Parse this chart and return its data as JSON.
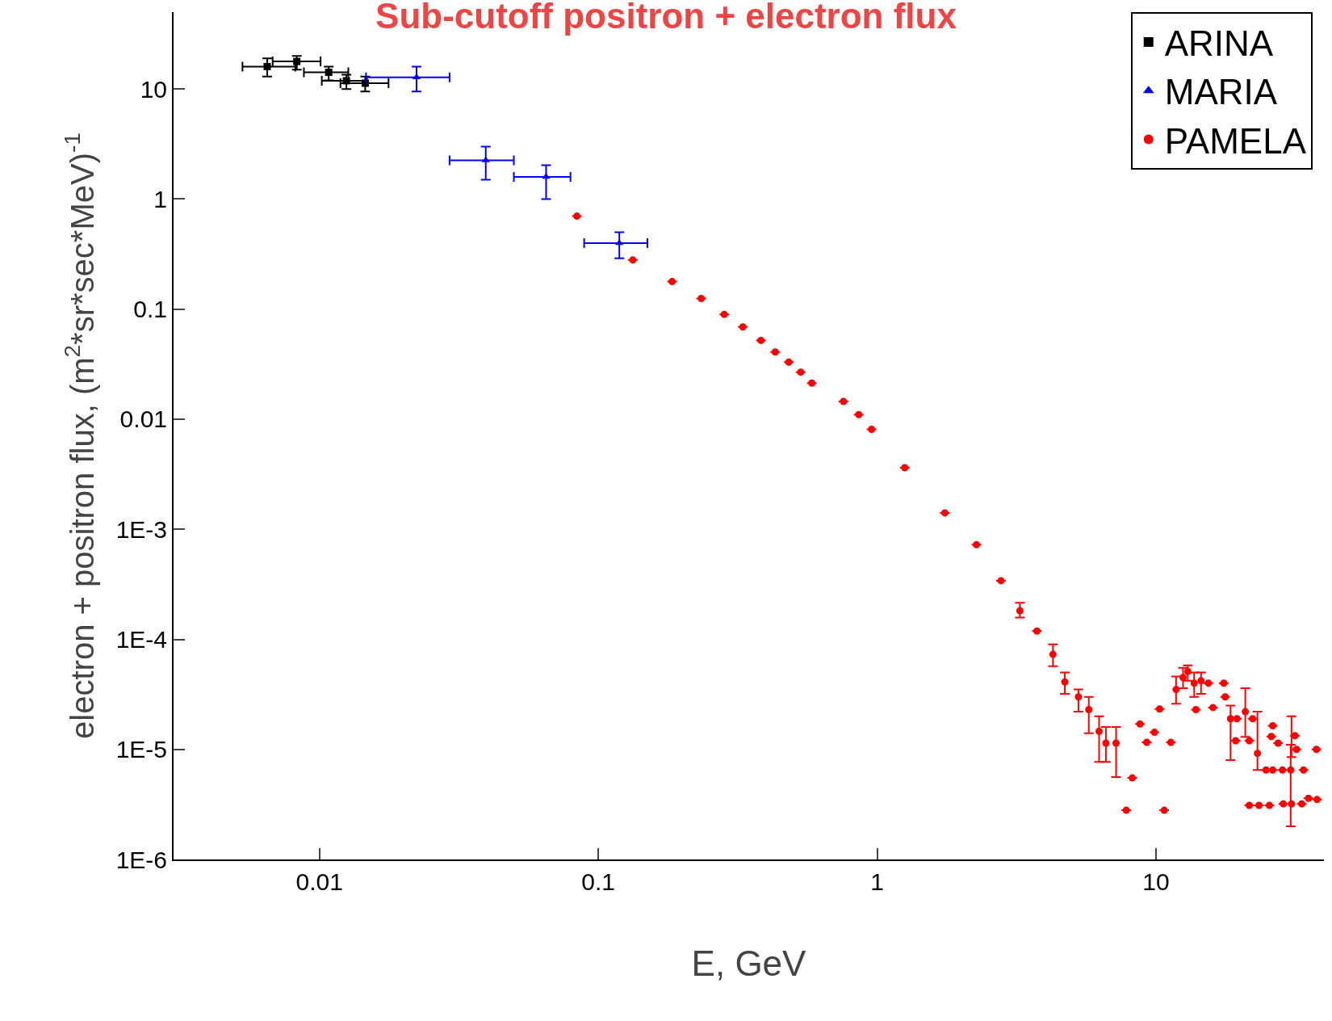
{
  "chart_data": {
    "type": "scatter",
    "title": "Sub-cutoff positron + electron flux",
    "xlabel": "E, GeV",
    "ylabel": "electron + positron flux, (m$^{2}$*sr*sec*MeV)$^{-1}$",
    "log": "xy",
    "grid": false,
    "legend": "top right",
    "xlim": [
      0.003,
      40
    ],
    "ylim": [
      1e-06,
      50
    ],
    "xticks": [
      0.01,
      0.1,
      1,
      10
    ],
    "yticks": [
      {
        "value": 10,
        "label": "10"
      },
      {
        "value": 1,
        "label": "1"
      },
      {
        "value": 0.1,
        "label": "0.1"
      },
      {
        "value": 0.01,
        "label": "0.01"
      },
      {
        "value": 0.001,
        "label": "1E-3"
      },
      {
        "value": 0.0001,
        "label": "1E-4"
      },
      {
        "value": 1e-05,
        "label": "1E-5"
      },
      {
        "value": 1e-06,
        "label": "1E-6"
      }
    ],
    "series": [
      {
        "name": "ARINA",
        "color": "#000000",
        "marker": "square",
        "x": [
          0.0065,
          0.0083,
          0.0108,
          0.0125,
          0.0146
        ],
        "values": [
          16,
          17.8,
          14.2,
          11.9,
          11.3
        ],
        "errors": [
          [
            13,
            19
          ],
          [
            15,
            20
          ],
          [
            12,
            16
          ],
          [
            10,
            13.5
          ],
          [
            9.5,
            13
          ]
        ],
        "xerrors": [
          [
            0.0053,
            0.0082
          ],
          [
            0.0068,
            0.0101
          ],
          [
            0.0088,
            0.0127
          ],
          [
            0.0102,
            0.0148
          ],
          [
            0.0119,
            0.0177
          ]
        ]
      },
      {
        "name": "MARIA",
        "color": "#0000ff",
        "marker": "triangle",
        "x": [
          0.0223,
          0.0395,
          0.065,
          0.119
        ],
        "values": [
          12.8,
          2.25,
          1.59,
          0.398
        ],
        "errors": [
          [
            9.5,
            16
          ],
          [
            1.5,
            3.0
          ],
          [
            1.0,
            2.03
          ],
          [
            0.29,
            0.5
          ]
        ],
        "xerrors": [
          [
            0.0147,
            0.0293
          ],
          [
            0.0293,
            0.0498
          ],
          [
            0.0498,
            0.0795
          ],
          [
            0.089,
            0.15
          ]
        ]
      },
      {
        "name": "PAMELA",
        "color": "#ff0000",
        "marker": "circle",
        "x": [
          0.0838,
          0.133,
          0.184,
          0.234,
          0.283,
          0.33,
          0.383,
          0.431,
          0.482,
          0.532,
          0.583,
          0.757,
          0.859,
          0.955,
          1.256,
          1.749,
          2.27,
          2.78,
          3.25,
          3.74,
          4.27,
          4.71,
          5.27,
          5.74,
          6.25,
          6.61,
          7.19,
          7.82,
          8.22,
          8.76,
          9.26,
          9.87,
          10.3,
          10.7,
          11.3,
          11.8,
          12.5,
          13.0,
          13.7,
          14.5,
          15.4,
          13.9,
          16.0,
          17.5,
          17.7,
          18.5,
          19.5,
          20.9,
          22.2,
          19.3,
          21.6,
          21.6,
          23.4,
          25.5,
          23.1,
          24.8,
          26.2,
          25.9,
          26.2,
          27.4,
          28.4,
          30.4,
          28.6,
          30.6,
          31.5,
          31.9,
          33.3,
          35.2,
          37.8,
          37.6,
          33.8
        ],
        "values": [
          0.7,
          0.28,
          0.178,
          0.125,
          0.0897,
          0.069,
          0.052,
          0.0408,
          0.033,
          0.0268,
          0.0213,
          0.0145,
          0.011,
          0.0081,
          0.00363,
          0.00141,
          0.000724,
          0.000341,
          0.000182,
          0.000119,
          7.3e-05,
          4.1e-05,
          3e-05,
          2.3e-05,
          1.46e-05,
          1.14e-05,
          1.14e-05,
          2.8e-06,
          5.5e-06,
          1.7e-05,
          1.16e-05,
          1.43e-05,
          2.33e-05,
          2.8e-06,
          1.16e-05,
          3.5e-05,
          4.5e-05,
          5.1e-05,
          4e-05,
          4.2e-05,
          4e-05,
          2.3e-05,
          2.4e-05,
          4e-05,
          3e-05,
          1.9e-05,
          1.9e-05,
          2.2e-05,
          1.9e-05,
          1.2e-05,
          1.2e-05,
          3.1e-06,
          3.1e-06,
          3.1e-06,
          9.2e-06,
          6.5e-06,
          6.5e-06,
          1.31e-05,
          1.64e-05,
          1.14e-05,
          6.5e-06,
          6.5e-06,
          3.2e-06,
          3.2e-06,
          1.33e-05,
          1e-05,
          3.2e-06,
          3.6e-06,
          3.5e-06,
          1e-05,
          6.5e-06
        ],
        "errors": [
          null,
          null,
          null,
          null,
          null,
          null,
          null,
          null,
          null,
          null,
          null,
          null,
          null,
          null,
          null,
          null,
          null,
          null,
          [
            0.000158,
            0.000215
          ],
          null,
          [
            5.7e-05,
            9e-05
          ],
          [
            3.2e-05,
            5e-05
          ],
          [
            2.2e-05,
            3.5e-05
          ],
          [
            1.4e-05,
            3e-05
          ],
          [
            7.7e-06,
            2e-05
          ],
          [
            7.7e-06,
            1.6e-05
          ],
          [
            5.6e-06,
            1.6e-05
          ],
          null,
          null,
          null,
          null,
          null,
          null,
          null,
          null,
          [
            2.6e-05,
            4.6e-05
          ],
          [
            3.6e-05,
            5.5e-05
          ],
          [
            4.2e-05,
            5.8e-05
          ],
          [
            3e-05,
            5e-05
          ],
          [
            3.2e-05,
            5e-05
          ],
          null,
          null,
          null,
          null,
          null,
          [
            8e-06,
            2.5e-05
          ],
          null,
          [
            1.3e-05,
            3.6e-05
          ],
          null,
          null,
          null,
          null,
          null,
          null,
          [
            6.5e-06,
            2.2e-05
          ],
          null,
          null,
          null,
          null,
          null,
          null,
          [
            2e-06,
            1.1e-05
          ],
          null,
          [
            8.5e-06,
            2e-05
          ],
          null,
          null,
          null,
          null,
          null,
          null,
          null
        ]
      }
    ]
  }
}
